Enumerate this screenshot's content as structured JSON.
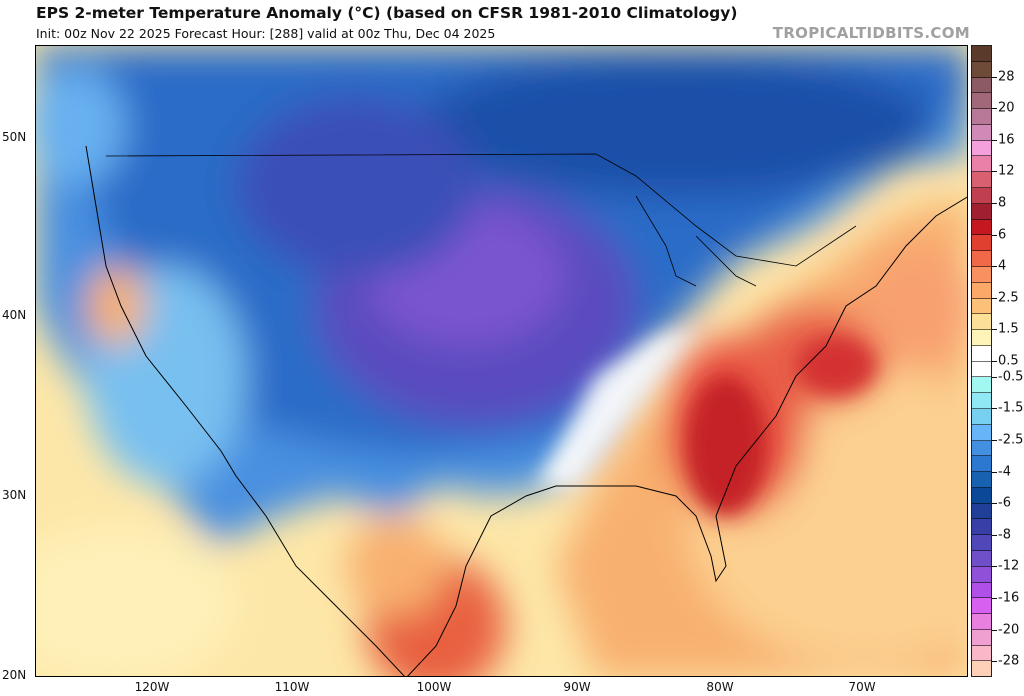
{
  "header": {
    "title": "EPS 2-meter Temperature Anomaly (°C) (based on CFSR 1981-2010 Climatology)",
    "subtitle": "Init: 00z Nov 22 2025   Forecast Hour: [288]   valid at 00z Thu, Dec 04 2025",
    "watermark": "TROPICALTIDBITS.COM"
  },
  "axes": {
    "lat_labels": [
      "50N",
      "40N",
      "30N",
      "20N"
    ],
    "lon_labels": [
      "120W",
      "110W",
      "100W",
      "90W",
      "80W",
      "70W"
    ]
  },
  "colorbar": {
    "labels": [
      "28",
      "20",
      "16",
      "12",
      "8",
      "6",
      "4",
      "2.5",
      "1.5",
      "0.5",
      "-0.5",
      "-1.5",
      "-2.5",
      "-4",
      "-6",
      "-8",
      "-12",
      "-16",
      "-20",
      "-28"
    ],
    "colors": [
      "#5a3a2a",
      "#6e4a38",
      "#8c5a64",
      "#a06878",
      "#b87898",
      "#d08ab8",
      "#f4a0dc",
      "#e880a8",
      "#d86070",
      "#c04050",
      "#a02030",
      "#c41820",
      "#e04030",
      "#f06848",
      "#f89060",
      "#fca868",
      "#fcc078",
      "#fde098",
      "#fef4b8",
      "#ffffff",
      "#ffffff",
      "#a0f8f0",
      "#90e8f4",
      "#78d0f0",
      "#68b4f8",
      "#4490e0",
      "#2c78d0",
      "#1860b0",
      "#0c4898",
      "#204098",
      "#3840a8",
      "#5048b8",
      "#7050c8",
      "#9050d8",
      "#b050e8",
      "#d860f0",
      "#e880e0",
      "#f0a0d0",
      "#f8b8c8",
      "#ffd0b8"
    ]
  }
}
